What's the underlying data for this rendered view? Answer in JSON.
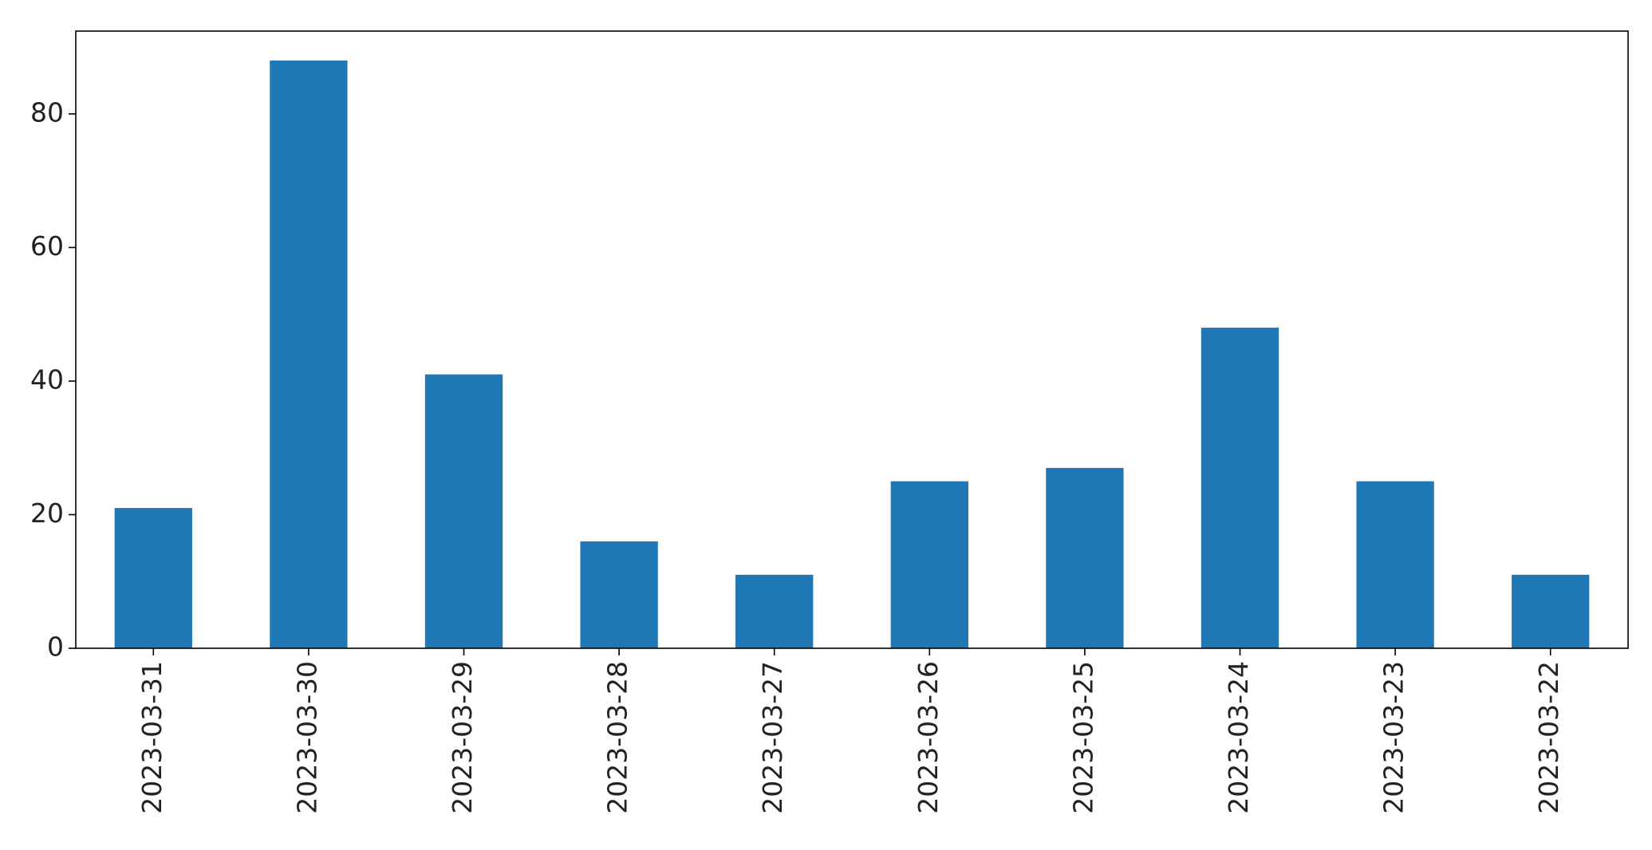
{
  "chart_data": {
    "type": "bar",
    "title": "",
    "xlabel": "",
    "ylabel": "",
    "categories": [
      "2023-03-31",
      "2023-03-30",
      "2023-03-29",
      "2023-03-28",
      "2023-03-27",
      "2023-03-26",
      "2023-03-25",
      "2023-03-24",
      "2023-03-23",
      "2023-03-22"
    ],
    "values": [
      21,
      88,
      41,
      16,
      11,
      25,
      27,
      48,
      25,
      11
    ],
    "ylim": [
      0,
      92.4
    ],
    "yticks": [
      0,
      20,
      40,
      60,
      80
    ],
    "bar_color": "#1f77b4",
    "grid": false,
    "legend": "none"
  }
}
